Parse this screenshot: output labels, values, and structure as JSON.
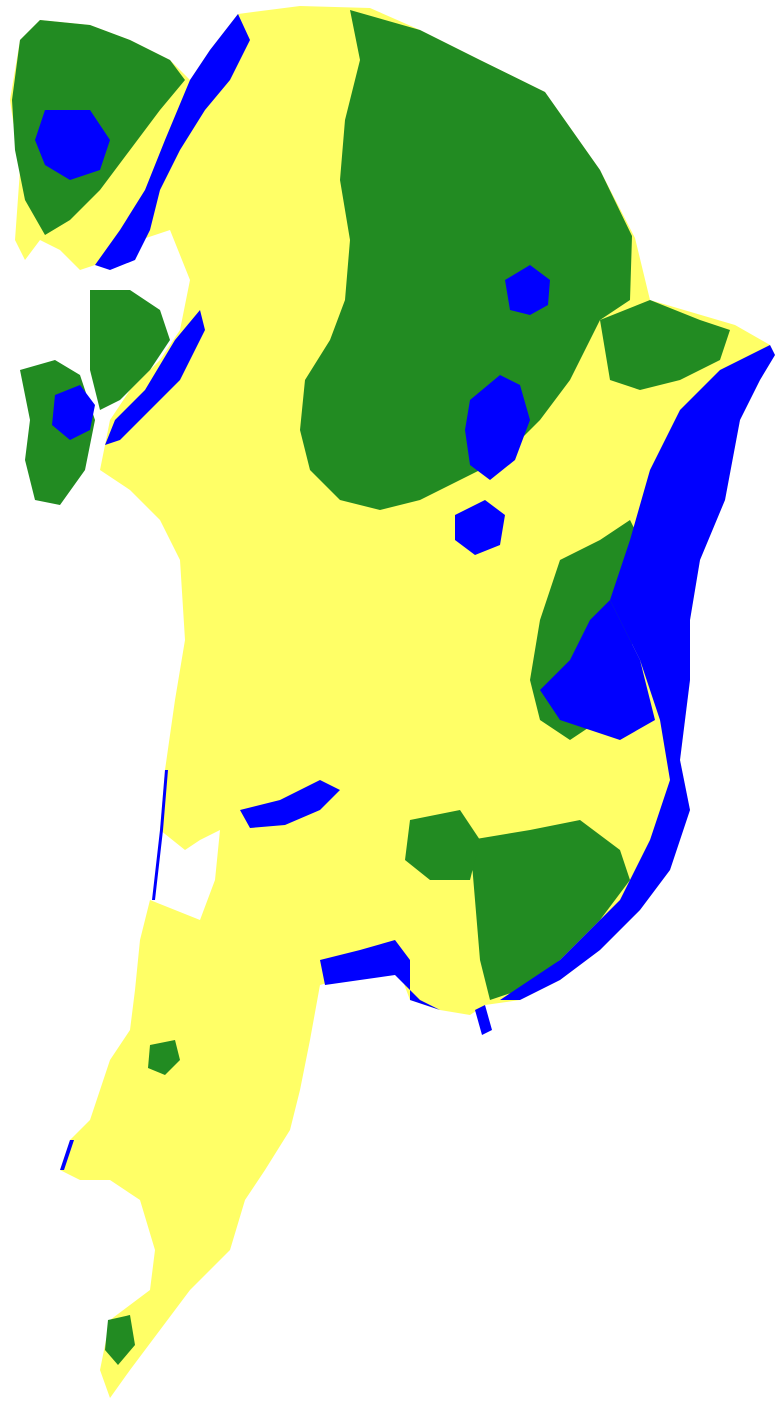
{
  "map": {
    "type": "land-cover-classification",
    "background_color": "#ffffff",
    "classes": [
      {
        "key": "built-up",
        "color": "#ffff66"
      },
      {
        "key": "vegetation",
        "color": "#228b22"
      },
      {
        "key": "water",
        "color": "#0000ff"
      }
    ]
  }
}
